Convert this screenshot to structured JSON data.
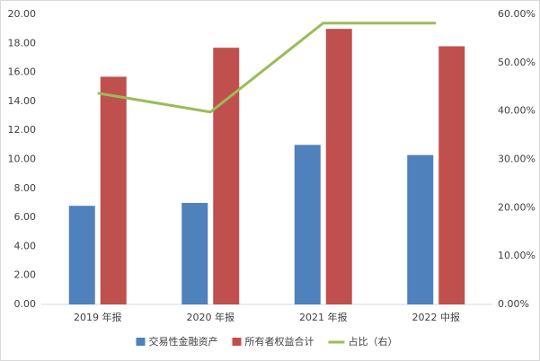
{
  "chart_data": {
    "type": "bar",
    "categories": [
      "2019 年报",
      "2020 年报",
      "2021 年报",
      "2022 中报"
    ],
    "series": [
      {
        "name": "交易性金融资产",
        "color": "#4f81bd",
        "type": "bar",
        "values": [
          6.8,
          7.0,
          11.0,
          10.3
        ]
      },
      {
        "name": "所有者权益合计",
        "color": "#c0504d",
        "type": "bar",
        "values": [
          15.7,
          17.7,
          19.0,
          17.8
        ]
      },
      {
        "name": "占比（右）",
        "color": "#9bbb59",
        "type": "line",
        "axis": "y2",
        "values": [
          43.7,
          39.8,
          58.2,
          58.2
        ]
      }
    ],
    "ylim": [
      0,
      20
    ],
    "yticks": [
      {
        "value": 0,
        "label": "0.00"
      },
      {
        "value": 2,
        "label": "2.00"
      },
      {
        "value": 4,
        "label": "4.00"
      },
      {
        "value": 6,
        "label": "6.00"
      },
      {
        "value": 8,
        "label": "8.00"
      },
      {
        "value": 10,
        "label": "10.00"
      },
      {
        "value": 12,
        "label": "12.00"
      },
      {
        "value": 14,
        "label": "14.00"
      },
      {
        "value": 16,
        "label": "16.00"
      },
      {
        "value": 18,
        "label": "18.00"
      },
      {
        "value": 20,
        "label": "20.00"
      }
    ],
    "y2lim": [
      0,
      60
    ],
    "y2ticks": [
      {
        "value": 0,
        "label": "0.00%"
      },
      {
        "value": 10,
        "label": "10.00%"
      },
      {
        "value": 20,
        "label": "20.00%"
      },
      {
        "value": 30,
        "label": "30.00%"
      },
      {
        "value": 40,
        "label": "40.00%"
      },
      {
        "value": 50,
        "label": "50.00%"
      },
      {
        "value": 60,
        "label": "60.00%"
      }
    ],
    "grid": false,
    "legend": "bottom"
  }
}
